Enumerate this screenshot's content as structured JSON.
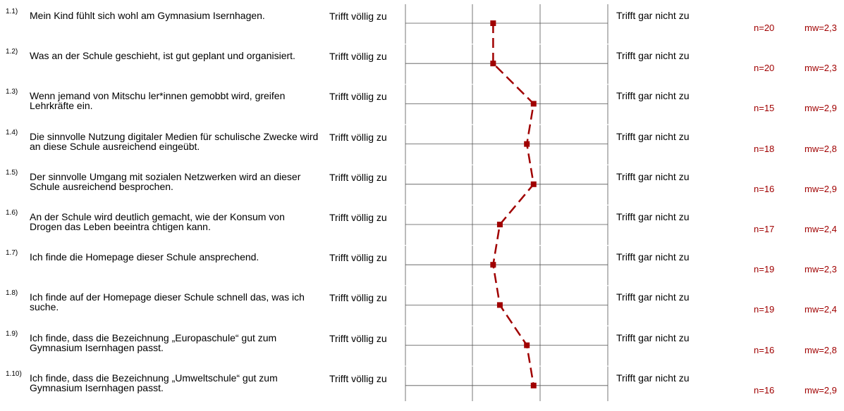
{
  "chart_data": {
    "type": "line",
    "scale_left": "Trifft völlig zu",
    "scale_right": "Trifft gar nicht zu",
    "xlim": [
      1,
      4
    ],
    "color": "#a00000",
    "items": [
      {
        "num": "1.1)",
        "text": "Mein Kind fühlt sich wohl am Gymnasium Isernhagen.",
        "n": "n=20",
        "mw": "mw=2,3",
        "value": 2.3
      },
      {
        "num": "1.2)",
        "text": "Was an der Schule geschieht, ist gut geplant und organisiert.",
        "n": "n=20",
        "mw": "mw=2,3",
        "value": 2.3
      },
      {
        "num": "1.3)",
        "text": "Wenn jemand von Mitschu ler*innen gemobbt wird, greifen Lehrkräfte ein.",
        "n": "n=15",
        "mw": "mw=2,9",
        "value": 2.9
      },
      {
        "num": "1.4)",
        "text": "Die sinnvolle Nutzung digitaler Medien für schulische Zwecke wird an diese Schule ausreichend eingeübt.",
        "n": "n=18",
        "mw": "mw=2,8",
        "value": 2.8
      },
      {
        "num": "1.5)",
        "text": "Der sinnvolle Umgang mit sozialen Netzwerken wird an dieser Schule ausreichend besprochen.",
        "n": "n=16",
        "mw": "mw=2,9",
        "value": 2.9
      },
      {
        "num": "1.6)",
        "text": "An der Schule wird deutlich gemacht, wie der Konsum von Drogen das Leben beeintra chtigen kann.",
        "n": "n=17",
        "mw": "mw=2,4",
        "value": 2.4
      },
      {
        "num": "1.7)",
        "text": "Ich finde die Homepage dieser Schule ansprechend.",
        "n": "n=19",
        "mw": "mw=2,3",
        "value": 2.3
      },
      {
        "num": "1.8)",
        "text": "Ich finde auf der Homepage dieser Schule schnell das, was ich suche.",
        "n": "n=19",
        "mw": "mw=2,4",
        "value": 2.4
      },
      {
        "num": "1.9)",
        "text": "Ich finde, dass die Bezeichnung „Europaschule“ gut zum Gymnasium Isernhagen passt.",
        "n": "n=16",
        "mw": "mw=2,8",
        "value": 2.8
      },
      {
        "num": "1.10)",
        "text": "Ich finde, dass die Bezeichnung „Umweltschule“ gut zum Gymnasium Isernhagen passt.",
        "n": "n=16",
        "mw": "mw=2,9",
        "value": 2.9
      }
    ]
  }
}
